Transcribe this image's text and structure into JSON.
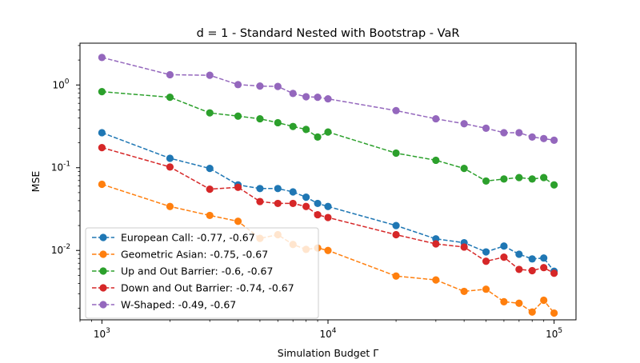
{
  "chart_data": {
    "type": "line",
    "title": "d = 1 - Standard Nested with Bootstrap - VaR",
    "xlabel": "Simulation Budget Γ",
    "ylabel": "MSE",
    "xscale": "log",
    "yscale": "log",
    "xlim": [
      800,
      125000
    ],
    "ylim": [
      0.00145,
      3.2
    ],
    "xticks": [
      1000,
      10000,
      100000
    ],
    "xtick_labels": [
      "10^3",
      "10^4",
      "10^5"
    ],
    "yticks": [
      0.01,
      0.1,
      1
    ],
    "ytick_labels": [
      "10^-2",
      "10^-1",
      "10^0"
    ],
    "grid": false,
    "legend_position": "lower-left",
    "line_style": "dashed",
    "marker": "circle",
    "x": [
      1000,
      2000,
      3000,
      4000,
      5000,
      6000,
      7000,
      8000,
      9000,
      10000,
      20000,
      30000,
      40000,
      50000,
      60000,
      70000,
      80000,
      90000,
      100000
    ],
    "series": [
      {
        "name": "European Call: -0.77, -0.67",
        "color": "#1f77b4",
        "values": [
          0.265,
          0.13,
          0.098,
          0.062,
          0.056,
          0.056,
          0.051,
          0.044,
          0.037,
          0.034,
          0.02,
          0.0138,
          0.0124,
          0.0096,
          0.0113,
          0.009,
          0.0079,
          0.0081,
          0.0056
        ]
      },
      {
        "name": "Geometric Asian: -0.75, -0.67",
        "color": "#ff7f0e",
        "values": [
          0.063,
          0.034,
          0.0265,
          0.0225,
          0.014,
          0.0155,
          0.0118,
          0.0103,
          0.0107,
          0.01,
          0.0049,
          0.0044,
          0.0032,
          0.0034,
          0.0024,
          0.0023,
          0.0018,
          0.0025,
          0.00175
        ]
      },
      {
        "name": "Up and Out Barrier: -0.6, -0.67",
        "color": "#2ca02c",
        "values": [
          0.83,
          0.71,
          0.46,
          0.42,
          0.39,
          0.35,
          0.315,
          0.29,
          0.235,
          0.27,
          0.15,
          0.123,
          0.098,
          0.069,
          0.073,
          0.076,
          0.073,
          0.076,
          0.062
        ]
      },
      {
        "name": "Down and Out Barrier: -0.74, -0.67",
        "color": "#d62728",
        "values": [
          0.175,
          0.102,
          0.055,
          0.058,
          0.039,
          0.037,
          0.037,
          0.034,
          0.027,
          0.025,
          0.0155,
          0.012,
          0.011,
          0.0074,
          0.0083,
          0.0059,
          0.0057,
          0.0062,
          0.0053
        ]
      },
      {
        "name": "W-Shaped: -0.49, -0.67",
        "color": "#9467bd",
        "values": [
          2.15,
          1.33,
          1.31,
          1.01,
          0.97,
          0.96,
          0.79,
          0.72,
          0.71,
          0.68,
          0.49,
          0.39,
          0.34,
          0.3,
          0.265,
          0.265,
          0.235,
          0.225,
          0.215
        ]
      }
    ]
  }
}
